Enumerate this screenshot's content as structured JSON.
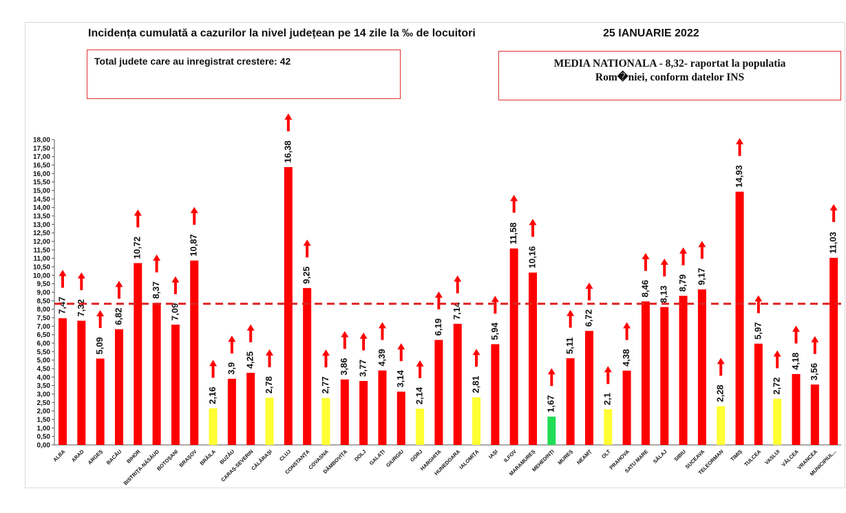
{
  "header": {
    "title": "Incidența cumulată a cazurilor la nivel județean pe 14 zile la ‰ de locuitori",
    "date": "25 IANUARIE 2022",
    "total_box": "Total judete care au inregistrat crestere: 42",
    "media_line1": "MEDIA NATIONALA - 8,32-  raportat la populatia",
    "media_line2": "Rom�niei, conform datelor INS"
  },
  "colors": {
    "red": "#ff0000",
    "yellow": "#ffff33",
    "green": "#22dd55",
    "reference": "#e02020"
  },
  "chart_data": {
    "type": "bar",
    "title": "Incidența cumulată a cazurilor la nivel județean pe 14 zile la ‰ de locuitori",
    "xlabel": "",
    "ylabel": "",
    "ylim": [
      0,
      18
    ],
    "ytick_step": 0.5,
    "grid": false,
    "reference_line": {
      "value": 8.32,
      "label": "MEDIA NATIONALA"
    },
    "categories": [
      "ALBA",
      "ARAD",
      "ARGEȘ",
      "BACĂU",
      "BIHOR",
      "BISTRIȚA-NĂSĂUD",
      "BOTOȘANI",
      "BRAȘOV",
      "BRĂILA",
      "BUZĂU",
      "CARAȘ-SEVERIN",
      "CĂLĂRAȘI",
      "CLUJ",
      "CONSTANȚA",
      "COVASNA",
      "DÂMBOVIȚA",
      "DOLJ",
      "GALAȚI",
      "GIURGIU",
      "GORJ",
      "HARGHITA",
      "HUNEDOARA",
      "IALOMIȚA",
      "IAȘI",
      "ILFOV",
      "MARAMUREȘ",
      "MEHEDINȚI",
      "MUREȘ",
      "NEAMȚ",
      "OLT",
      "PRAHOVA",
      "SATU MARE",
      "SĂLAJ",
      "SIBIU",
      "SUCEAVA",
      "TELEORMAN",
      "TIMIȘ",
      "TULCEA",
      "VASLUI",
      "VÂLCEA",
      "VRANCEA",
      "MUNICIPIUL..."
    ],
    "values": [
      7.47,
      7.32,
      5.09,
      6.82,
      10.72,
      8.37,
      7.09,
      10.87,
      2.16,
      3.9,
      4.25,
      2.78,
      16.38,
      9.25,
      2.77,
      3.86,
      3.77,
      4.39,
      3.14,
      2.14,
      6.19,
      7.14,
      2.81,
      5.94,
      11.58,
      10.16,
      1.67,
      5.11,
      6.72,
      2.1,
      4.38,
      8.46,
      8.13,
      8.79,
      9.17,
      2.28,
      14.93,
      5.97,
      2.72,
      4.18,
      3.56,
      11.03
    ],
    "labels": [
      "7,47",
      "7,32",
      "5,09",
      "6,82",
      "10,72",
      "8,37",
      "7,09",
      "10,87",
      "2,16",
      "3,9",
      "4,25",
      "2,78",
      "16,38",
      "9,25",
      "2,77",
      "3,86",
      "3,77",
      "4,39",
      "3,14",
      "2,14",
      "6,19",
      "7,14",
      "2,81",
      "5,94",
      "11,58",
      "10,16",
      "1,67",
      "5,11",
      "6,72",
      "2,1",
      "4,38",
      "8,46",
      "8,13",
      "8,79",
      "9,17",
      "2,28",
      "14,93",
      "5,97",
      "2,72",
      "4,18",
      "3,56",
      "11,03"
    ],
    "bar_colors": [
      "red",
      "red",
      "red",
      "red",
      "red",
      "red",
      "red",
      "red",
      "yellow",
      "red",
      "red",
      "yellow",
      "red",
      "red",
      "yellow",
      "red",
      "red",
      "red",
      "red",
      "yellow",
      "red",
      "red",
      "yellow",
      "red",
      "red",
      "red",
      "green",
      "red",
      "red",
      "yellow",
      "red",
      "red",
      "red",
      "red",
      "red",
      "yellow",
      "red",
      "red",
      "yellow",
      "red",
      "red",
      "red"
    ],
    "trend": "up",
    "yticks": [
      "0,00",
      "0,50",
      "1,00",
      "1,50",
      "2,00",
      "2,50",
      "3,00",
      "3,50",
      "4,00",
      "4,50",
      "5,00",
      "5,50",
      "6,00",
      "6,50",
      "7,00",
      "7,50",
      "8,00",
      "8,50",
      "9,00",
      "9,50",
      "10,00",
      "10,50",
      "11,00",
      "11,50",
      "12,00",
      "12,50",
      "13,00",
      "13,50",
      "14,00",
      "14,50",
      "15,00",
      "15,50",
      "16,00",
      "16,50",
      "17,00",
      "17,50",
      "18,00"
    ]
  }
}
